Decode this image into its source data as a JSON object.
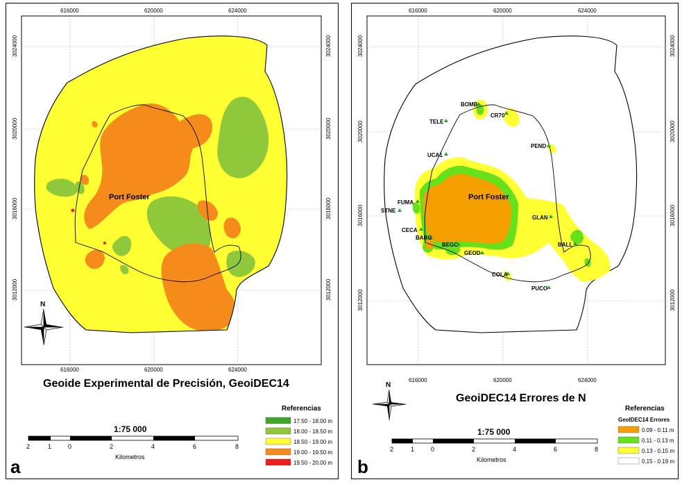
{
  "panel_a": {
    "letter": "a",
    "title": "Geoide Experimental de Precisión, GeoiDEC14",
    "town": "Port Foster",
    "x_ticks": [
      "616000",
      "620000",
      "624000"
    ],
    "y_ticks": [
      "3024000",
      "3020000",
      "3016000",
      "3012000"
    ],
    "north": "N",
    "scale": {
      "label": "1:75 000",
      "numbers": [
        "2",
        "1",
        "0",
        "2",
        "4",
        "6",
        "8"
      ],
      "unit": "Kilometros"
    },
    "legend": {
      "title": "Referencias",
      "items": [
        {
          "label": "17.50 - 18.00 m",
          "color": "#3fa62a"
        },
        {
          "label": "18.00 - 18.50 m",
          "color": "#8fc83a"
        },
        {
          "label": "18.50 - 19.00 m",
          "color": "#ffff33"
        },
        {
          "label": "19.00 - 19.50 m",
          "color": "#f58b1a"
        },
        {
          "label": "19.50 - 20.00 m",
          "color": "#ee1c1c"
        }
      ]
    }
  },
  "panel_b": {
    "letter": "b",
    "title": "GeoiDEC14 Errores de N",
    "town": "Port Foster",
    "x_ticks": [
      "616000",
      "620000",
      "624000"
    ],
    "y_ticks": [
      "3024000",
      "3020000",
      "3016000",
      "3012000"
    ],
    "north": "N",
    "stations": [
      {
        "label": "BOMB"
      },
      {
        "label": "CR70"
      },
      {
        "label": "TELE"
      },
      {
        "label": "PEND"
      },
      {
        "label": "UCA1"
      },
      {
        "label": "FUMA"
      },
      {
        "label": "STNE"
      },
      {
        "label": "GLAN"
      },
      {
        "label": "CECA"
      },
      {
        "label": "BARG"
      },
      {
        "label": "BEGC"
      },
      {
        "label": "GEOD"
      },
      {
        "label": "BALL"
      },
      {
        "label": "COLA"
      },
      {
        "label": "PUCO"
      }
    ],
    "scale": {
      "label": "1:75 000",
      "numbers": [
        "2",
        "1",
        "0",
        "2",
        "4",
        "6",
        "8"
      ],
      "unit": "Kilometros"
    },
    "legend": {
      "title": "Referencias",
      "subtitle": "GeoIDEC14 Errores",
      "items": [
        {
          "label": "0.09 - 0.11 m",
          "color": "#f5a000"
        },
        {
          "label": "0.11 - 0.13 m",
          "color": "#66e01a"
        },
        {
          "label": "0.13 - 0.15 m",
          "color": "#ffff33"
        },
        {
          "label": "0.15 - 0.19 m",
          "color": "#ffffff"
        }
      ]
    }
  }
}
